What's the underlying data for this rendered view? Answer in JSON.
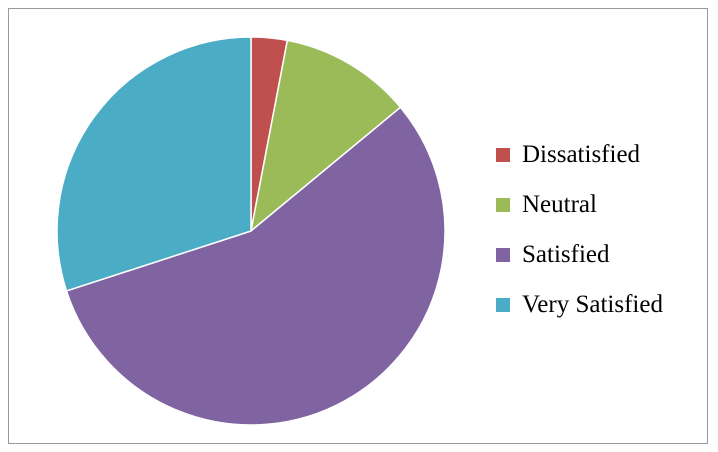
{
  "chart_data": {
    "type": "pie",
    "title": "",
    "categories": [
      "Dissatisfied",
      "Neutral",
      "Satisfied",
      "Very Satisfied"
    ],
    "values": [
      3,
      11,
      56,
      30
    ],
    "colors": [
      "#C0504D",
      "#9BBB59",
      "#8064A2",
      "#4BACC6"
    ],
    "start_angle_deg": 0,
    "direction": "clockwise",
    "legend_position": "right",
    "data_labels": false
  }
}
